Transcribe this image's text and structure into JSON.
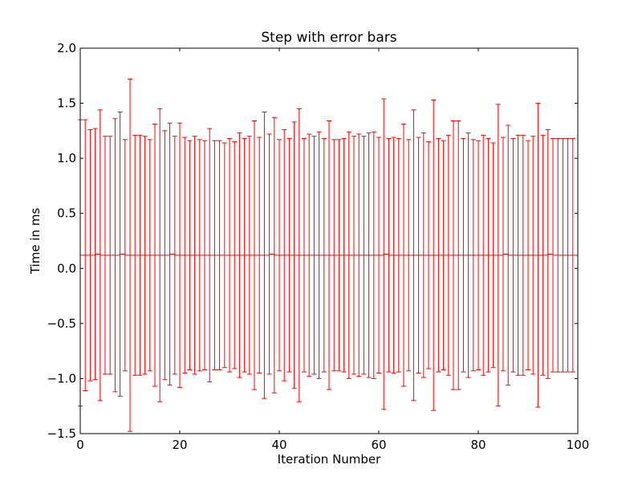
{
  "chart_data": {
    "type": "errorbar",
    "title": "Step with error bars",
    "xlabel": "Iteration Number",
    "ylabel": "Time in ms",
    "xlim": [
      0,
      100
    ],
    "ylim": [
      -1.5,
      2.0
    ],
    "xticks": [
      0,
      20,
      40,
      60,
      80,
      100
    ],
    "xtick_labels": [
      "0",
      "20",
      "40",
      "60",
      "80",
      "100"
    ],
    "yticks": [
      -1.5,
      -1.0,
      -0.5,
      0.0,
      0.5,
      1.0,
      1.5,
      2.0
    ],
    "ytick_labels": [
      "−1.5",
      "−1.0",
      "−0.5",
      "0.0",
      "0.5",
      "1.0",
      "1.5",
      "2.0"
    ],
    "grid": false,
    "series": [
      {
        "color": "#ff0000",
        "x": [
          0,
          1,
          2,
          3,
          4,
          5,
          6,
          7,
          8,
          9,
          10,
          11,
          12,
          13,
          14,
          15,
          16,
          17,
          18,
          19,
          20,
          21,
          22,
          23,
          24,
          25,
          26,
          27,
          28,
          29,
          30,
          31,
          32,
          33,
          34,
          35,
          36,
          37,
          38,
          39,
          40,
          41,
          42,
          43,
          44,
          45,
          46,
          47,
          48,
          49,
          50,
          51,
          52,
          53,
          54,
          55,
          56,
          57,
          58,
          59,
          60,
          61,
          62,
          63,
          64,
          65,
          66,
          67,
          68,
          69,
          70,
          71,
          72,
          73,
          74,
          75,
          76,
          77,
          78,
          79,
          80,
          81,
          82,
          83,
          84,
          85,
          86,
          87,
          88,
          89,
          90,
          91,
          92,
          93,
          94,
          95,
          96,
          97,
          98,
          99
        ],
        "y": [
          0.12,
          0.12,
          0.12,
          0.13,
          0.12,
          0.12,
          0.12,
          0.12,
          0.13,
          0.12,
          0.12,
          0.12,
          0.12,
          0.12,
          0.12,
          0.12,
          0.12,
          0.12,
          0.13,
          0.12,
          0.12,
          0.12,
          0.12,
          0.12,
          0.12,
          0.12,
          0.12,
          0.12,
          0.12,
          0.12,
          0.12,
          0.12,
          0.12,
          0.12,
          0.12,
          0.12,
          0.12,
          0.12,
          0.13,
          0.12,
          0.12,
          0.12,
          0.12,
          0.12,
          0.12,
          0.12,
          0.12,
          0.12,
          0.12,
          0.12,
          0.12,
          0.12,
          0.12,
          0.12,
          0.12,
          0.12,
          0.12,
          0.12,
          0.12,
          0.12,
          0.12,
          0.13,
          0.12,
          0.12,
          0.12,
          0.12,
          0.12,
          0.12,
          0.12,
          0.12,
          0.12,
          0.12,
          0.12,
          0.12,
          0.12,
          0.12,
          0.12,
          0.12,
          0.12,
          0.12,
          0.12,
          0.12,
          0.12,
          0.12,
          0.12,
          0.13,
          0.12,
          0.12,
          0.12,
          0.12,
          0.12,
          0.12,
          0.12,
          0.12,
          0.13,
          0.12,
          0.12,
          0.12,
          0.12,
          0.12
        ],
        "yerr_upper": [
          1.23,
          1.23,
          1.14,
          1.14,
          1.32,
          1.08,
          1.08,
          1.24,
          1.29,
          1.05,
          1.6,
          1.09,
          1.09,
          1.08,
          1.05,
          1.19,
          1.33,
          1.13,
          1.19,
          1.08,
          1.2,
          1.07,
          1.04,
          1.08,
          1.05,
          1.04,
          1.15,
          1.04,
          1.04,
          1.02,
          1.06,
          1.03,
          1.11,
          1.06,
          1.08,
          1.22,
          1.07,
          1.3,
          1.09,
          1.25,
          1.05,
          1.14,
          1.06,
          1.21,
          1.33,
          1.06,
          1.1,
          1.08,
          1.12,
          1.06,
          1.22,
          1.05,
          1.05,
          1.06,
          1.12,
          1.08,
          1.1,
          1.08,
          1.11,
          1.12,
          1.07,
          1.41,
          1.06,
          1.07,
          1.06,
          1.19,
          1.05,
          1.32,
          1.07,
          1.11,
          1.03,
          1.41,
          1.06,
          1.04,
          1.09,
          1.22,
          1.22,
          1.06,
          1.11,
          1.05,
          1.04,
          1.09,
          1.06,
          1.02,
          1.37,
          1.06,
          1.18,
          1.06,
          1.09,
          1.09,
          1.04,
          1.08,
          1.38,
          1.09,
          1.13,
          1.06,
          1.06,
          1.06,
          1.06,
          1.06
        ],
        "yerr_lower": [
          1.37,
          1.23,
          1.14,
          1.14,
          1.32,
          1.08,
          1.08,
          1.24,
          1.29,
          1.05,
          1.6,
          1.09,
          1.09,
          1.08,
          1.05,
          1.19,
          1.33,
          1.13,
          1.19,
          1.08,
          1.2,
          1.07,
          1.04,
          1.08,
          1.05,
          1.04,
          1.15,
          1.04,
          1.04,
          1.02,
          1.06,
          1.03,
          1.11,
          1.06,
          1.08,
          1.22,
          1.07,
          1.3,
          1.09,
          1.25,
          1.05,
          1.14,
          1.06,
          1.21,
          1.33,
          1.06,
          1.1,
          1.08,
          1.12,
          1.06,
          1.22,
          1.05,
          1.05,
          1.06,
          1.12,
          1.08,
          1.1,
          1.08,
          1.11,
          1.12,
          1.07,
          1.41,
          1.06,
          1.07,
          1.06,
          1.19,
          1.05,
          1.32,
          1.07,
          1.11,
          1.03,
          1.41,
          1.06,
          1.04,
          1.09,
          1.22,
          1.22,
          1.06,
          1.11,
          1.05,
          1.04,
          1.09,
          1.06,
          1.02,
          1.37,
          1.06,
          1.18,
          1.06,
          1.09,
          1.09,
          1.04,
          1.08,
          1.38,
          1.09,
          1.13,
          1.06,
          1.06,
          1.06,
          1.06,
          1.06
        ]
      }
    ]
  }
}
